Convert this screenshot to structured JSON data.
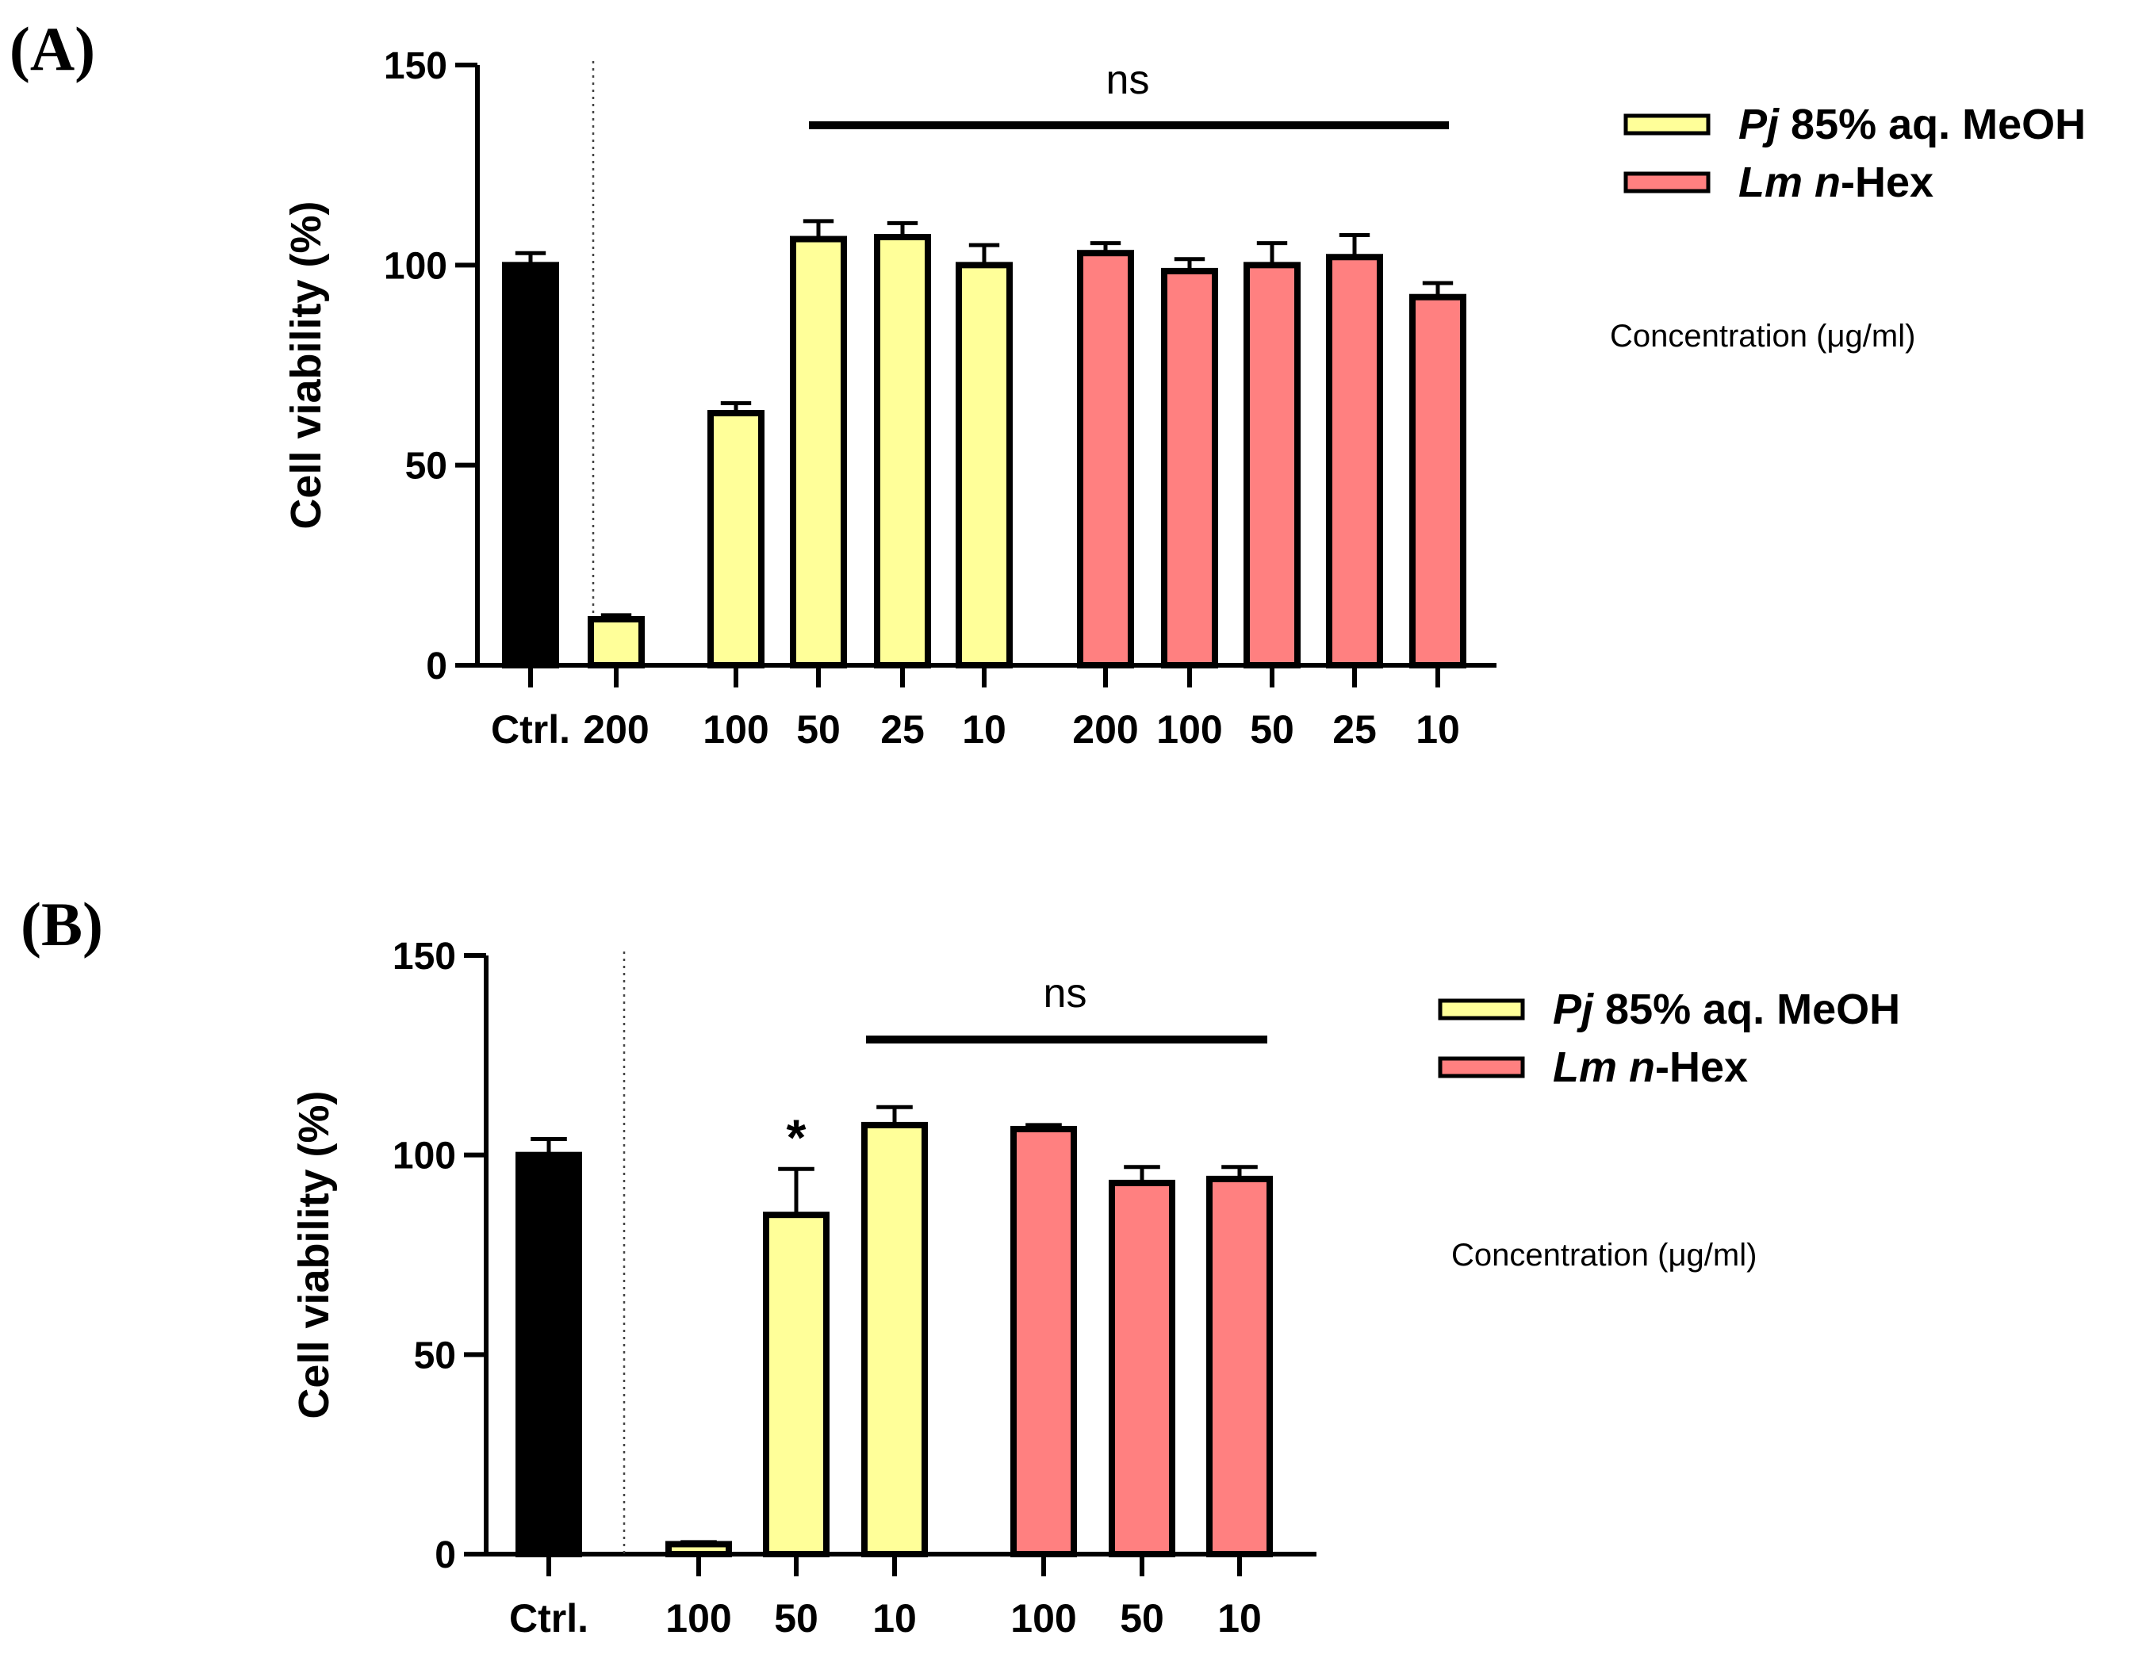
{
  "chart_data": [
    {
      "type": "bar",
      "panel_label": "(A)",
      "ylabel": "Cell viability (%)",
      "ylim": [
        0,
        150
      ],
      "yticks": [
        0,
        50,
        100,
        150
      ],
      "ytick_labels": [
        "0",
        "50",
        "100",
        "150"
      ],
      "categories": [
        "Ctrl.",
        "200",
        "100",
        "50",
        "25",
        "10",
        "200",
        "100",
        "50",
        "25",
        "10"
      ],
      "series": [
        {
          "name": "Control",
          "values": [
            100,
            null,
            null,
            null,
            null,
            null,
            null,
            null,
            null,
            null,
            null
          ],
          "errors": [
            3,
            null,
            null,
            null,
            null,
            null,
            null,
            null,
            null,
            null,
            null
          ]
        },
        {
          "name": "Pj 85% aq. MeOH",
          "values": [
            null,
            11.5,
            63,
            106.5,
            107,
            100,
            null,
            null,
            null,
            null,
            null
          ],
          "errors": [
            null,
            1,
            2.5,
            4.5,
            3.5,
            5,
            null,
            null,
            null,
            null,
            null
          ]
        },
        {
          "name": "Lm n-Hex",
          "values": [
            null,
            null,
            null,
            null,
            null,
            null,
            103,
            98.5,
            100,
            102,
            92
          ],
          "errors": [
            null,
            null,
            null,
            null,
            null,
            null,
            2.5,
            3,
            5.5,
            5.5,
            3.5
          ]
        }
      ],
      "annotations": [
        {
          "text": "ns",
          "from_index": 3,
          "to_index": 10
        }
      ],
      "legend": {
        "position": "right",
        "entries": [
          {
            "em": "Pj",
            "rest": " 85% aq. MeOH"
          },
          {
            "em": "Lm n",
            "rest": "-Hex"
          }
        ]
      },
      "concentration_label": "Concentration (μg/ml)",
      "grid": false
    },
    {
      "type": "bar",
      "panel_label": "(B)",
      "ylabel": "Cell viability (%)",
      "ylim": [
        0,
        150
      ],
      "yticks": [
        0,
        50,
        100,
        150
      ],
      "ytick_labels": [
        "0",
        "50",
        "100",
        "150"
      ],
      "categories": [
        "Ctrl.",
        "100",
        "50",
        "10",
        "100",
        "50",
        "10"
      ],
      "series": [
        {
          "name": "Control",
          "values": [
            100,
            null,
            null,
            null,
            null,
            null,
            null
          ],
          "errors": [
            4,
            null,
            null,
            null,
            null,
            null,
            null
          ]
        },
        {
          "name": "Pj 85% aq. MeOH",
          "values": [
            null,
            2.5,
            85,
            107.5,
            null,
            null,
            null
          ],
          "errors": [
            null,
            0.5,
            11.5,
            4.5,
            null,
            null,
            null
          ]
        },
        {
          "name": "Lm n-Hex",
          "values": [
            null,
            null,
            null,
            null,
            106.5,
            93,
            94
          ],
          "errors": [
            null,
            null,
            null,
            null,
            1,
            4,
            3
          ]
        }
      ],
      "annotations": [
        {
          "text": "ns",
          "from_index": 3,
          "to_index": 6
        },
        {
          "text": "*",
          "index": 2
        }
      ],
      "legend": {
        "position": "right",
        "entries": [
          {
            "em": "Pj",
            "rest": " 85% aq. MeOH"
          },
          {
            "em": "Lm n",
            "rest": "-Hex"
          }
        ]
      },
      "concentration_label": "Concentration (μg/ml)",
      "grid": false
    }
  ],
  "colors": {
    "control": "#000000",
    "pj": "#ffff99",
    "lm": "#ff8080",
    "stroke": "#000000"
  }
}
